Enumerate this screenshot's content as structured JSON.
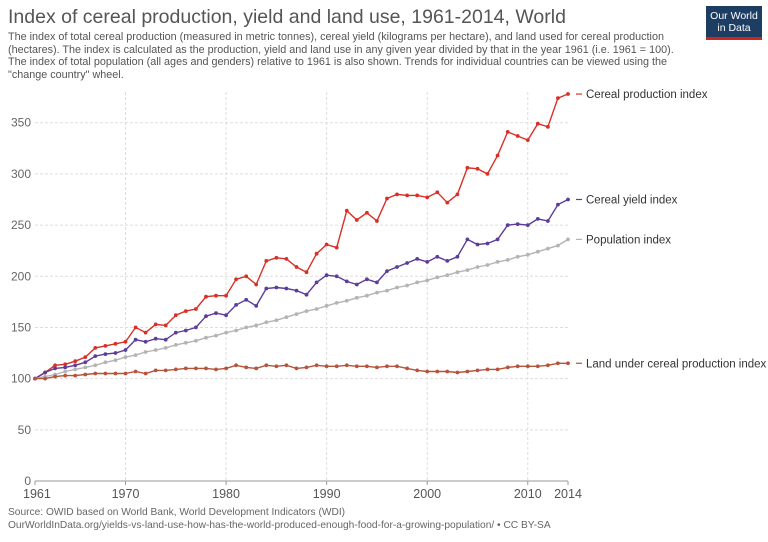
{
  "header": {
    "title": "Index of cereal production, yield and land use, 1961-2014, World",
    "subtitle_lines": [
      "The index of total cereal production (measured in metric tonnes), cereal yield (kilograms per hectare), and land used for cereal production",
      "(hectares). The index is calculated as the production, yield and land use in any given year divided by that in the year 1961 (i.e. 1961 = 100).",
      "The index of total population (all ages and genders) relative to 1961 is also shown. Trends for individual countries can be viewed using the",
      "\"change country\" wheel."
    ],
    "logo_line1": "Our World",
    "logo_line2": "in Data"
  },
  "footer": {
    "source": "Source: OWID based on World Bank, World Development Indicators (WDI)",
    "url": "OurWorldInData.org/yields-vs-land-use-how-has-the-world-produced-enough-food-for-a-growing-population/ • CC BY-SA"
  },
  "chart_data": {
    "type": "line",
    "title": "Index of cereal production, yield and land use, 1961-2014, World",
    "xlabel": "",
    "ylabel": "",
    "xlim": [
      1961,
      2014
    ],
    "ylim": [
      0,
      380
    ],
    "x_ticks": [
      1961,
      1970,
      1980,
      1990,
      2000,
      2010,
      2014
    ],
    "y_ticks": [
      0,
      50,
      100,
      150,
      200,
      250,
      300,
      350
    ],
    "grid": true,
    "legend": "end-of-line labels at right",
    "x": [
      1961,
      1962,
      1963,
      1964,
      1965,
      1966,
      1967,
      1968,
      1969,
      1970,
      1971,
      1972,
      1973,
      1974,
      1975,
      1976,
      1977,
      1978,
      1979,
      1980,
      1981,
      1982,
      1983,
      1984,
      1985,
      1986,
      1987,
      1988,
      1989,
      1990,
      1991,
      1992,
      1993,
      1994,
      1995,
      1996,
      1997,
      1998,
      1999,
      2000,
      2001,
      2002,
      2003,
      2004,
      2005,
      2006,
      2007,
      2008,
      2009,
      2010,
      2011,
      2012,
      2013,
      2014
    ],
    "series": [
      {
        "name": "Cereal production index",
        "color": "#d73027",
        "values": [
          100,
          106,
          113,
          114,
          117,
          121,
          130,
          132,
          134,
          136,
          150,
          145,
          153,
          152,
          162,
          166,
          168,
          180,
          181,
          181,
          197,
          200,
          192,
          215,
          218,
          217,
          209,
          204,
          222,
          231,
          228,
          264,
          255,
          262,
          254,
          276,
          280,
          279,
          279,
          277,
          282,
          272,
          280,
          306,
          305,
          300,
          318,
          341,
          337,
          333,
          349,
          346,
          374,
          378
        ]
      },
      {
        "name": "Cereal yield index",
        "color": "#5e3c99",
        "values": [
          100,
          106,
          110,
          111,
          113,
          116,
          122,
          124,
          125,
          128,
          138,
          136,
          139,
          138,
          145,
          147,
          150,
          161,
          164,
          162,
          172,
          177,
          171,
          188,
          189,
          188,
          186,
          182,
          194,
          201,
          200,
          195,
          192,
          197,
          194,
          205,
          209,
          213,
          217,
          214,
          219,
          215,
          219,
          236,
          231,
          232,
          236,
          250,
          251,
          250,
          256,
          254,
          270,
          275
        ]
      },
      {
        "name": "Population index",
        "color": "#b4b4b4",
        "values": [
          100,
          102,
          104,
          107,
          109,
          111,
          113,
          116,
          118,
          121,
          123,
          126,
          128,
          130,
          133,
          135,
          137,
          140,
          142,
          145,
          147,
          150,
          152,
          155,
          157,
          160,
          163,
          166,
          168,
          171,
          174,
          176,
          179,
          181,
          184,
          186,
          189,
          191,
          194,
          196,
          199,
          201,
          204,
          206,
          209,
          211,
          214,
          216,
          219,
          221,
          224,
          227,
          230,
          236
        ]
      },
      {
        "name": "Land under cereal production index",
        "color": "#b5533c",
        "values": [
          100,
          100,
          102,
          103,
          103,
          104,
          105,
          105,
          105,
          105,
          107,
          105,
          108,
          108,
          109,
          110,
          110,
          110,
          109,
          110,
          113,
          111,
          110,
          113,
          112,
          113,
          110,
          111,
          113,
          112,
          112,
          113,
          112,
          112,
          111,
          112,
          112,
          110,
          108,
          107,
          107,
          107,
          106,
          107,
          108,
          109,
          109,
          111,
          112,
          112,
          112,
          113,
          115,
          115
        ]
      }
    ]
  }
}
